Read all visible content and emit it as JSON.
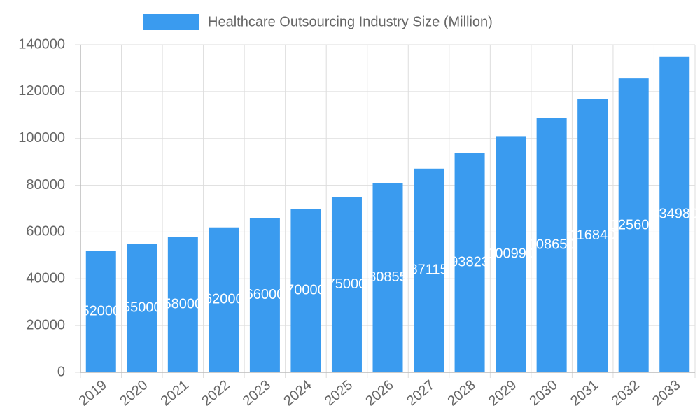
{
  "chart_data": {
    "type": "bar",
    "categories": [
      "2019",
      "2020",
      "2021",
      "2022",
      "2023",
      "2024",
      "2025",
      "2026",
      "2027",
      "2028",
      "2029",
      "2030",
      "2031",
      "2032",
      "2033"
    ],
    "series": [
      {
        "name": "Healthcare Outsourcing Industry Size (Million)",
        "color": "#3a9bef",
        "values": [
          52000,
          55000,
          58000,
          62000,
          66000,
          70000,
          75000,
          80855,
          87115,
          93823,
          100990,
          108650,
          116840,
          125600,
          134980
        ]
      }
    ],
    "ylim": [
      0,
      140000
    ],
    "yticks": [
      0,
      20000,
      40000,
      60000,
      80000,
      100000,
      120000,
      140000
    ],
    "grid": true,
    "legend": "top"
  }
}
